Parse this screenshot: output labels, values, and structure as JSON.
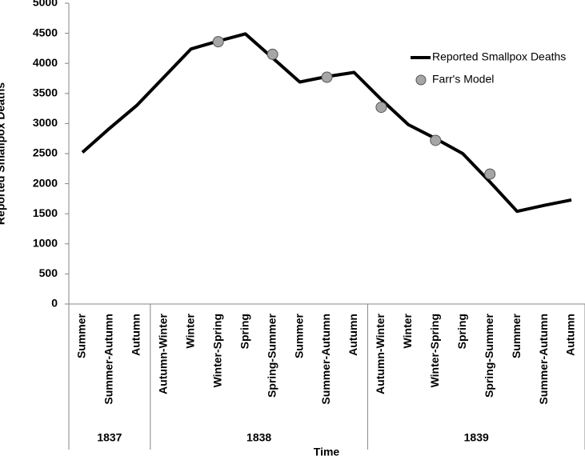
{
  "chart_data": {
    "type": "line",
    "y_label": "Reported Smallpox Deaths",
    "x_label": "Time",
    "groups": [
      {
        "label": "1837",
        "categories": [
          "Summer",
          "Summer-Autumn",
          "Autumn"
        ]
      },
      {
        "label": "1838",
        "categories": [
          "Autumn-Winter",
          "Winter",
          "Winter-Spring",
          "Spring",
          "Spring-Summer",
          "Summer",
          "Summer-Autumn",
          "Autumn"
        ]
      },
      {
        "label": "1839",
        "categories": [
          "Autumn-Winter",
          "Winter",
          "Winter-Spring",
          "Spring",
          "Spring-Summer",
          "Summer",
          "Summer-Autumn",
          "Autumn"
        ]
      }
    ],
    "series": [
      {
        "name": "Reported Smallpox Deaths",
        "color": "#000000",
        "style": "line",
        "values": [
          2520,
          2920,
          3300,
          3770,
          4240,
          4370,
          4490,
          4090,
          3690,
          3780,
          3850,
          3400,
          2980,
          2750,
          2500,
          2030,
          1540,
          1640,
          1730
        ]
      },
      {
        "name": "Farr's Model",
        "color": "#a6a6a6",
        "style": "marker",
        "values": [
          null,
          null,
          null,
          null,
          null,
          4360,
          null,
          4150,
          null,
          3770,
          null,
          3270,
          null,
          2720,
          null,
          2160,
          null,
          null,
          null
        ]
      }
    ],
    "ylim": [
      0,
      5000
    ],
    "yticks": [
      0,
      500,
      1000,
      1500,
      2000,
      2500,
      3000,
      3500,
      4000,
      4500,
      5000
    ],
    "grid": false
  }
}
